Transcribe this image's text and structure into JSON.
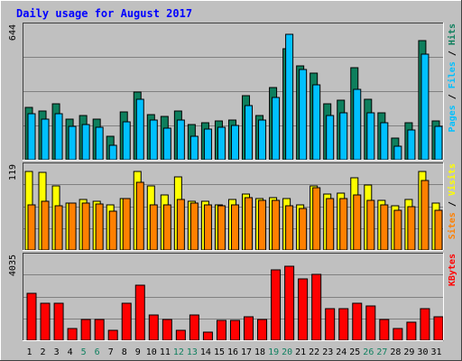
{
  "colors": {
    "page_bg": "#c0c0c0",
    "plot_bg": "#c0c0c0",
    "grid": "#808080",
    "frame_dark": "#404040",
    "frame_light": "#ffffff",
    "title": "#0000ff",
    "hits": "#0e7f5d",
    "files": "#00c0ff",
    "pages": "#00c0ff",
    "visits": "#ffff00",
    "sites": "#ff8000",
    "kbytes": "#ff0000",
    "weekend_label": "#108060",
    "day_label": "#000000"
  },
  "chart_data": {
    "type": "bar",
    "title": "Daily usage for August 2017",
    "categories": [
      "1",
      "2",
      "3",
      "4",
      "5",
      "6",
      "7",
      "8",
      "9",
      "10",
      "11",
      "12",
      "13",
      "14",
      "15",
      "16",
      "17",
      "18",
      "19",
      "20",
      "21",
      "22",
      "23",
      "24",
      "25",
      "26",
      "27",
      "28",
      "29",
      "30",
      "31"
    ],
    "weekend_days": [
      "5",
      "6",
      "12",
      "13",
      "19",
      "20",
      "26",
      "27"
    ],
    "panels": [
      {
        "name": "hits-files-pages",
        "ymax_label": "644",
        "ymax": 644,
        "side_label": [
          "Pages",
          " / ",
          "Files",
          " / ",
          "Hits"
        ],
        "side_label_colors": [
          "#00c0ff",
          "#000000",
          "#00c0ff",
          "#000000",
          "#0e7f5d"
        ],
        "series": [
          {
            "name": "Hits",
            "values": [
              258,
              237,
              275,
              198,
              216,
              198,
              113,
              232,
              332,
              221,
              213,
              237,
              173,
              182,
              188,
              194,
              312,
              216,
              353,
              541,
              458,
              422,
              275,
              292,
              451,
              297,
              229,
              106,
              181,
              583,
              188
            ]
          },
          {
            "name": "Files",
            "values": [
              224,
              199,
              224,
              163,
              172,
              159,
              71,
              186,
              297,
              194,
              154,
              194,
              113,
              150,
              159,
              167,
              264,
              194,
              306,
              612,
              439,
              364,
              216,
              228,
              346,
              229,
              182,
              64,
              147,
              515,
              163
            ]
          }
        ]
      },
      {
        "name": "visits-sites",
        "ymax_label": "119",
        "ymax": 119,
        "side_label": [
          "Sites",
          " / ",
          "Visits"
        ],
        "side_label_colors": [
          "#ff8000",
          "#000000",
          "#ffff00"
        ],
        "series": [
          {
            "name": "Visits",
            "values": [
              114,
              112,
              93,
              68,
              73,
              70,
              66,
              74,
              114,
              93,
              80,
              106,
              71,
              70,
              65,
              73,
              81,
              74,
              76,
              75,
              65,
              93,
              81,
              82,
              105,
              94,
              72,
              64,
              73,
              114,
              68
            ]
          },
          {
            "name": "Sites",
            "values": [
              65,
              71,
              64,
              68,
              68,
              67,
              56,
              74,
              98,
              66,
              65,
              73,
              68,
              66,
              64,
              65,
              76,
              72,
              72,
              64,
              60,
              90,
              75,
              75,
              80,
              72,
              66,
              58,
              63,
              101,
              58
            ]
          }
        ]
      },
      {
        "name": "kbytes",
        "ymax_label": "4035",
        "ymax": 4035,
        "side_label": [
          "KBytes"
        ],
        "side_label_colors": [
          "#ff0000"
        ],
        "series": [
          {
            "name": "KBytes",
            "values": [
              2300,
              1810,
              1810,
              560,
              1020,
              1000,
              480,
              1810,
              2700,
              1240,
              1000,
              500,
              1260,
              400,
              980,
              980,
              1140,
              1000,
              3460,
              3620,
              3000,
              3230,
              1570,
              1570,
              1810,
              1700,
              1040,
              570,
              900,
              1560,
              1140
            ]
          }
        ]
      }
    ]
  }
}
